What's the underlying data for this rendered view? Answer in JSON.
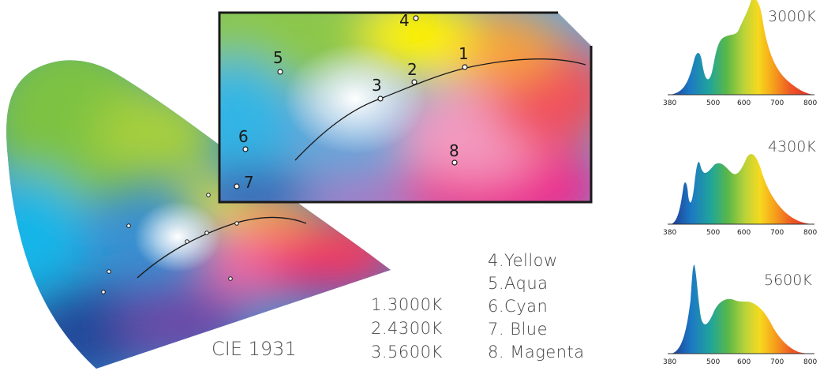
{
  "diagram": {
    "title": "CIE 1931",
    "point_labels": [
      "1",
      "2",
      "3",
      "4",
      "5",
      "6",
      "7",
      "8"
    ],
    "legend_left": [
      "1.3000K",
      "2.4300K",
      "3.5600K"
    ],
    "legend_right": [
      "4.Yellow",
      "5.Aqua",
      "6.Cyan",
      "7. Blue",
      "8. Magenta"
    ]
  },
  "spectra": [
    {
      "title": "3000K",
      "ticks": [
        "380",
        "500",
        "600",
        "700",
        "800"
      ]
    },
    {
      "title": "4300K",
      "ticks": [
        "380",
        "500",
        "600",
        "700",
        "800"
      ]
    },
    {
      "title": "5600K",
      "ticks": [
        "380",
        "500",
        "600",
        "700",
        "800"
      ]
    }
  ],
  "colors": {
    "frame": "#1a1a1a",
    "text": "#444444"
  }
}
